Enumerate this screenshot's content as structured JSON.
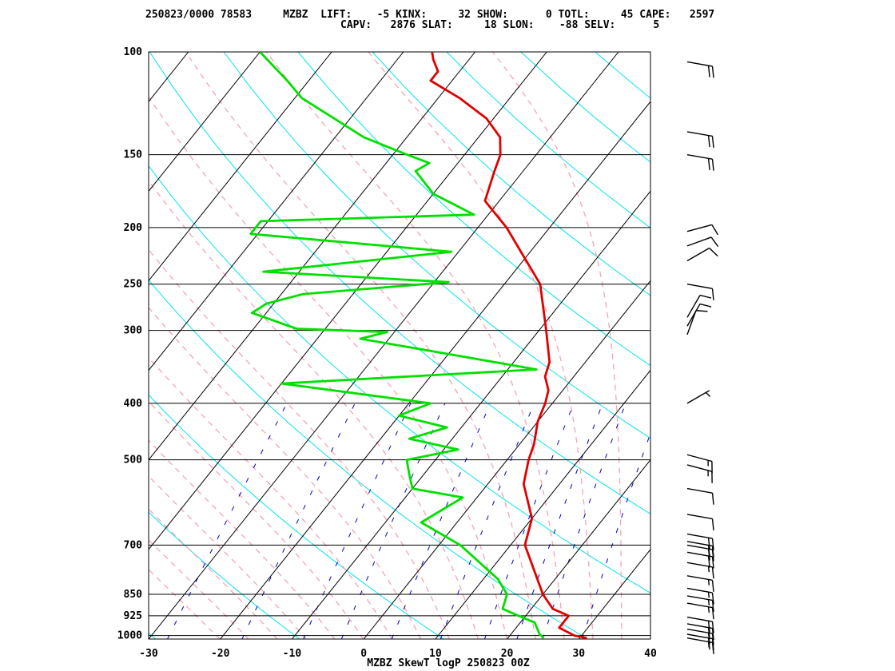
{
  "header": {
    "line1": "250823/0000 78583     MZBZ  LIFT:    -5 KINX:     32 SHOW:      0 TOTL:     45 CAPE:   2597",
    "line2": "CAPV:   2876 SLAT:     18 SLON:    -88 SELV:      5"
  },
  "chart_data": {
    "type": "line",
    "title": "MZBZ SkewT logP 250823 00Z",
    "xlabel": "",
    "ylabel": "",
    "x_ticks": [
      "-30",
      "-20",
      "-10",
      "0",
      "10",
      "20",
      "30",
      "40"
    ],
    "xlim": [
      -30,
      40
    ],
    "pressure_levels": [
      100,
      150,
      200,
      250,
      300,
      400,
      500,
      700,
      850,
      925,
      1000
    ],
    "p_range": [
      100,
      1014
    ],
    "y_scale": "log-pressure",
    "grid": true,
    "colors": {
      "temperature": "#e00000",
      "dewpoint": "#00e000",
      "isotherm": "#000000",
      "isobar": "#000000",
      "dry_adiabat": "#00e5ee",
      "moist_adiabat": "#f4a4b4",
      "mixing_ratio": "#0000cc",
      "wind_barb": "#000000"
    },
    "series": [
      {
        "name": "Temperature",
        "points": [
          [
            1010,
            31
          ],
          [
            1000,
            29
          ],
          [
            970,
            26
          ],
          [
            925,
            26
          ],
          [
            900,
            23
          ],
          [
            850,
            20
          ],
          [
            700,
            12
          ],
          [
            630,
            10
          ],
          [
            550,
            5
          ],
          [
            500,
            3
          ],
          [
            470,
            2
          ],
          [
            430,
            0
          ],
          [
            400,
            -1
          ],
          [
            380,
            -2
          ],
          [
            360,
            -4
          ],
          [
            340,
            -5
          ],
          [
            300,
            -9
          ],
          [
            250,
            -15
          ],
          [
            200,
            -26
          ],
          [
            180,
            -32
          ],
          [
            160,
            -34
          ],
          [
            150,
            -35
          ],
          [
            140,
            -37
          ],
          [
            130,
            -41
          ],
          [
            120,
            -47
          ],
          [
            112,
            -53
          ],
          [
            108,
            -53
          ],
          [
            103,
            -55
          ],
          [
            100,
            -56
          ]
        ]
      },
      {
        "name": "Dewpoint",
        "points": [
          [
            1010,
            25
          ],
          [
            995,
            24
          ],
          [
            950,
            22
          ],
          [
            925,
            19
          ],
          [
            900,
            16
          ],
          [
            850,
            15
          ],
          [
            800,
            12
          ],
          [
            700,
            3
          ],
          [
            640,
            -5
          ],
          [
            580,
            -2
          ],
          [
            560,
            -10
          ],
          [
            530,
            -12
          ],
          [
            500,
            -14
          ],
          [
            480,
            -8
          ],
          [
            460,
            -16
          ],
          [
            440,
            -12
          ],
          [
            420,
            -20
          ],
          [
            400,
            -17
          ],
          [
            370,
            -40
          ],
          [
            350,
            -6
          ],
          [
            310,
            -34
          ],
          [
            302,
            -31
          ],
          [
            298,
            -44
          ],
          [
            280,
            -52
          ],
          [
            270,
            -51
          ],
          [
            260,
            -47
          ],
          [
            248,
            -28
          ],
          [
            238,
            -55
          ],
          [
            220,
            -31
          ],
          [
            205,
            -61
          ],
          [
            195,
            -61
          ],
          [
            190,
            -32
          ],
          [
            175,
            -40
          ],
          [
            160,
            -45
          ],
          [
            155,
            -44
          ],
          [
            150,
            -48
          ],
          [
            140,
            -56
          ],
          [
            120,
            -69
          ],
          [
            112,
            -73
          ],
          [
            100,
            -80
          ]
        ]
      }
    ],
    "wind_barbs": [
      {
        "p": 1010,
        "speed_kt": 15,
        "dir_deg": 100
      },
      {
        "p": 995,
        "speed_kt": 20,
        "dir_deg": 100
      },
      {
        "p": 975,
        "speed_kt": 20,
        "dir_deg": 100
      },
      {
        "p": 955,
        "speed_kt": 20,
        "dir_deg": 100
      },
      {
        "p": 930,
        "speed_kt": 20,
        "dir_deg": 100
      },
      {
        "p": 880,
        "speed_kt": 15,
        "dir_deg": 100
      },
      {
        "p": 855,
        "speed_kt": 15,
        "dir_deg": 100
      },
      {
        "p": 830,
        "speed_kt": 15,
        "dir_deg": 100
      },
      {
        "p": 790,
        "speed_kt": 15,
        "dir_deg": 100
      },
      {
        "p": 750,
        "speed_kt": 15,
        "dir_deg": 100
      },
      {
        "p": 720,
        "speed_kt": 20,
        "dir_deg": 100
      },
      {
        "p": 700,
        "speed_kt": 20,
        "dir_deg": 100
      },
      {
        "p": 690,
        "speed_kt": 20,
        "dir_deg": 100
      },
      {
        "p": 670,
        "speed_kt": 20,
        "dir_deg": 100
      },
      {
        "p": 620,
        "speed_kt": 10,
        "dir_deg": 100
      },
      {
        "p": 560,
        "speed_kt": 10,
        "dir_deg": 100
      },
      {
        "p": 510,
        "speed_kt": 15,
        "dir_deg": 105
      },
      {
        "p": 490,
        "speed_kt": 15,
        "dir_deg": 105
      },
      {
        "p": 400,
        "speed_kt": 5,
        "dir_deg": 60
      },
      {
        "p": 305,
        "speed_kt": 10,
        "dir_deg": 20
      },
      {
        "p": 295,
        "speed_kt": 10,
        "dir_deg": 30
      },
      {
        "p": 285,
        "speed_kt": 10,
        "dir_deg": 30
      },
      {
        "p": 250,
        "speed_kt": 10,
        "dir_deg": 100
      },
      {
        "p": 228,
        "speed_kt": 10,
        "dir_deg": 60
      },
      {
        "p": 215,
        "speed_kt": 10,
        "dir_deg": 70
      },
      {
        "p": 203,
        "speed_kt": 10,
        "dir_deg": 75
      },
      {
        "p": 150,
        "speed_kt": 20,
        "dir_deg": 100
      },
      {
        "p": 137,
        "speed_kt": 20,
        "dir_deg": 100
      },
      {
        "p": 104,
        "speed_kt": 20,
        "dir_deg": 100
      }
    ]
  }
}
